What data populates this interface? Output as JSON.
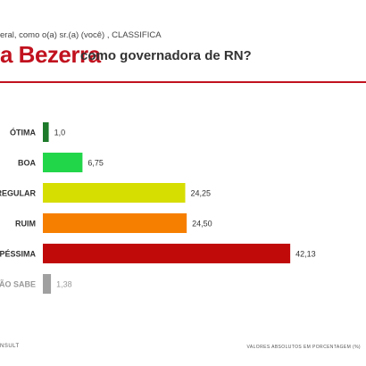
{
  "header": {
    "question": "eral, como o(a) sr.(a) (você) , CLASSIFICA",
    "title_bold": "a Bezerra",
    "title_rest": "como governadora de RN?"
  },
  "footer": {
    "left": "NSULT",
    "right": "VALORES ABSOLUTOS EM PORCENTAGEM (%)"
  },
  "colors": {
    "otima": "#1c7a2a",
    "boa": "#22d64a",
    "regular": "#d6dd00",
    "ruim": "#f77f00",
    "pessima": "#c00a0a",
    "nao_sabe": "#a0a0a0"
  },
  "chart_data": {
    "type": "bar",
    "orientation": "horizontal",
    "categories": [
      "ÓTIMA",
      "BOA",
      "REGULAR",
      "RUIM",
      "PÉSSIMA",
      "ÃO SABE"
    ],
    "values": [
      1.0,
      6.75,
      24.25,
      24.5,
      42.13,
      1.38
    ],
    "value_labels": [
      "1,0",
      "6,75",
      "24,25",
      "24,50",
      "42,13",
      "1,38"
    ],
    "xlim": [
      0,
      45
    ]
  }
}
